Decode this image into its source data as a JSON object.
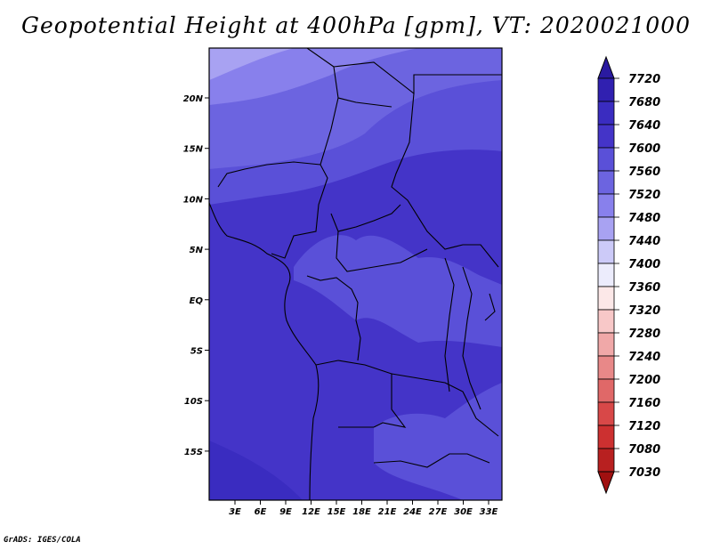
{
  "title": "Geopotential Height at 400hPa [gpm], VT: 2020021000",
  "credit": "GrADS: IGES/COLA",
  "map": {
    "lon_ticks": [
      "3E",
      "6E",
      "9E",
      "12E",
      "15E",
      "18E",
      "21E",
      "24E",
      "27E",
      "30E",
      "33E"
    ],
    "lat_ticks": [
      "20N",
      "15N",
      "10N",
      "5N",
      "EQ",
      "5S",
      "10S",
      "15S"
    ]
  },
  "colorbar": {
    "levels": [
      "7720",
      "7680",
      "7640",
      "7600",
      "7560",
      "7520",
      "7480",
      "7440",
      "7400",
      "7360",
      "7320",
      "7280",
      "7240",
      "7200",
      "7160",
      "7120",
      "7080",
      "7030"
    ],
    "colors": [
      "#2a1aa0",
      "#3020b0",
      "#3a2cc0",
      "#4434c8",
      "#5a50d8",
      "#6c64e0",
      "#8880ec",
      "#a8a2f2",
      "#cccaf8",
      "#ececfc",
      "#fce8e8",
      "#f8c8c8",
      "#f0a8a8",
      "#e88888",
      "#e06868",
      "#d84848",
      "#cc3030",
      "#b82020",
      "#a01010"
    ]
  }
}
